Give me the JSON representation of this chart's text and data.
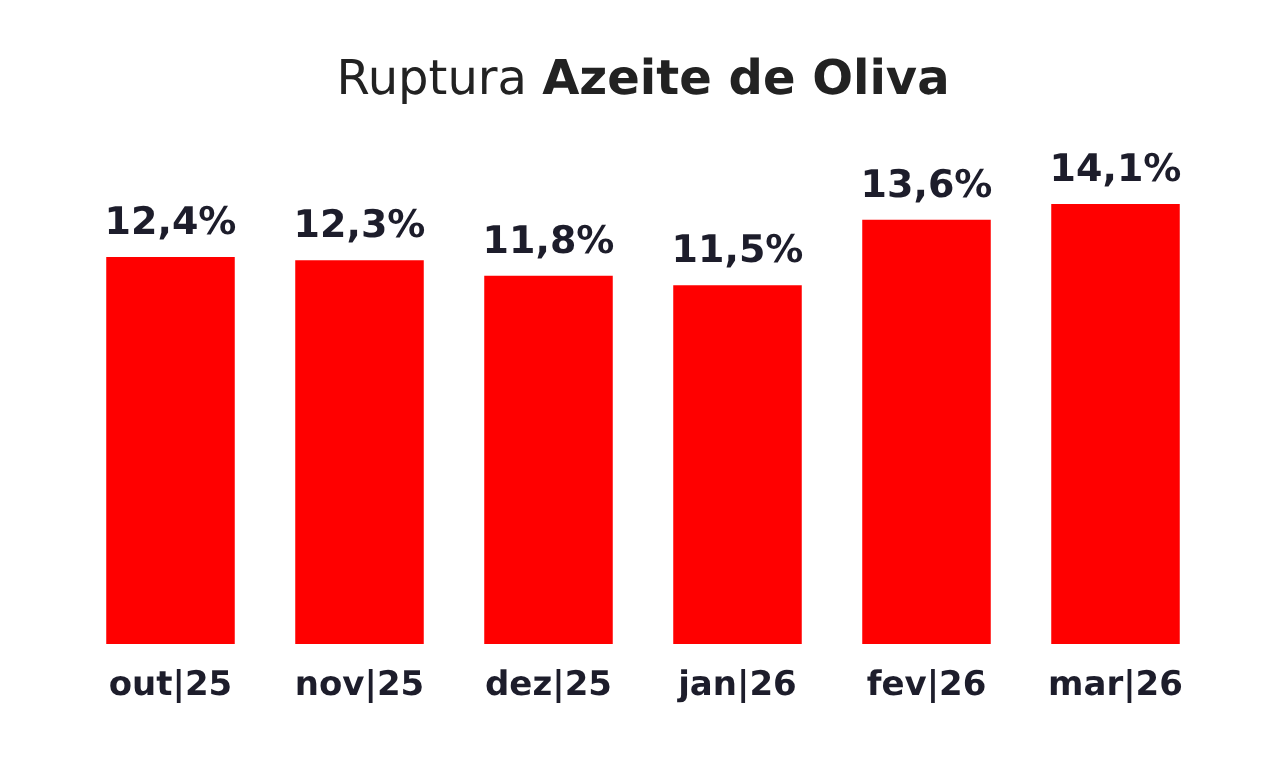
{
  "chart_data": {
    "type": "bar",
    "title": "Ruptura Azeite de Oliva",
    "categories": [
      "out|25",
      "nov|25",
      "dez|25",
      "jan|26",
      "fev|26",
      "mar|26"
    ],
    "values": [
      12.4,
      12.3,
      11.8,
      11.5,
      13.6,
      14.1
    ],
    "value_labels": [
      "12,4%",
      "12,3%",
      "11,8%",
      "11,5%",
      "13,6%",
      "14,1%"
    ],
    "color": "#ff0000"
  }
}
